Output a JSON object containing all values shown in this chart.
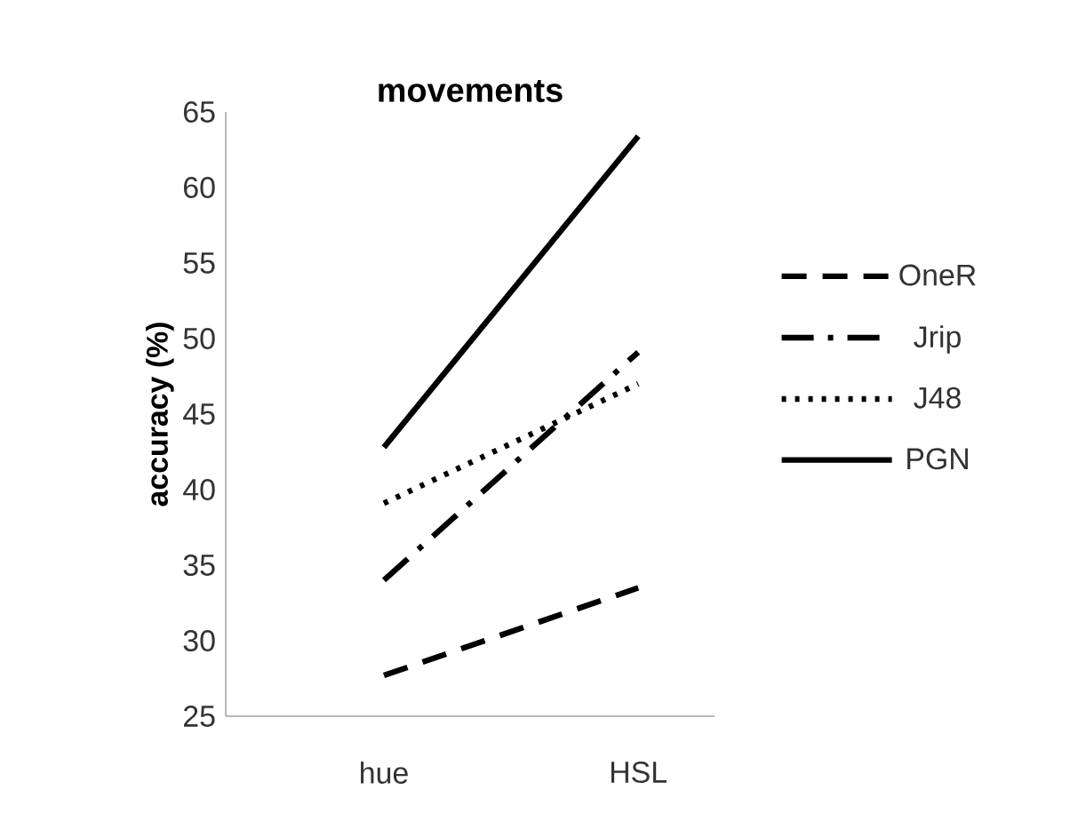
{
  "chart_data": {
    "type": "line",
    "title": "movements",
    "ylabel": "accuracy (%)",
    "categories": [
      "hue",
      "HSL"
    ],
    "ylim": [
      25,
      65
    ],
    "yticks": [
      25,
      30,
      35,
      40,
      45,
      50,
      55,
      60,
      65
    ],
    "legend": "right",
    "marker": "none",
    "series": [
      {
        "name": "OneR",
        "color": "#000000",
        "line_style": "dashed",
        "values": [
          27.7,
          33.5
        ]
      },
      {
        "name": "Jrip",
        "color": "#000000",
        "line_style": "dashdot",
        "values": [
          34.0,
          49.1
        ]
      },
      {
        "name": "J48",
        "color": "#000000",
        "line_style": "dotted",
        "values": [
          39.1,
          47.0
        ]
      },
      {
        "name": "PGN",
        "color": "#000000",
        "line_style": "solid",
        "values": [
          42.8,
          63.4
        ]
      }
    ]
  }
}
